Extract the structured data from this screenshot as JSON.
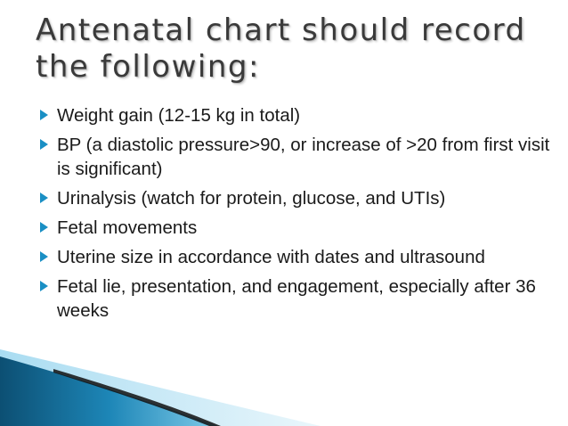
{
  "slide": {
    "title_lines": [
      "Antenatal chart should record",
      "the following:"
    ],
    "bullets": [
      "Weight gain (12-15 kg in total)",
      "BP (a diastolic pressure>90, or increase of >20 from first visit is significant)",
      "Urinalysis (watch for protein, glucose, and UTIs)",
      "Fetal movements",
      "Uterine size in accordance with dates and ultrasound",
      "Fetal lie, presentation, and engagement, especially after 36 weeks"
    ]
  },
  "colors": {
    "bullet_marker": "#1a8fc4",
    "title_text": "#3a3a3a",
    "body_text": "#1a1a1a",
    "corner_dark": "#0c4f73",
    "corner_mid": "#1d86b7",
    "corner_light": "#6fc3e6"
  }
}
